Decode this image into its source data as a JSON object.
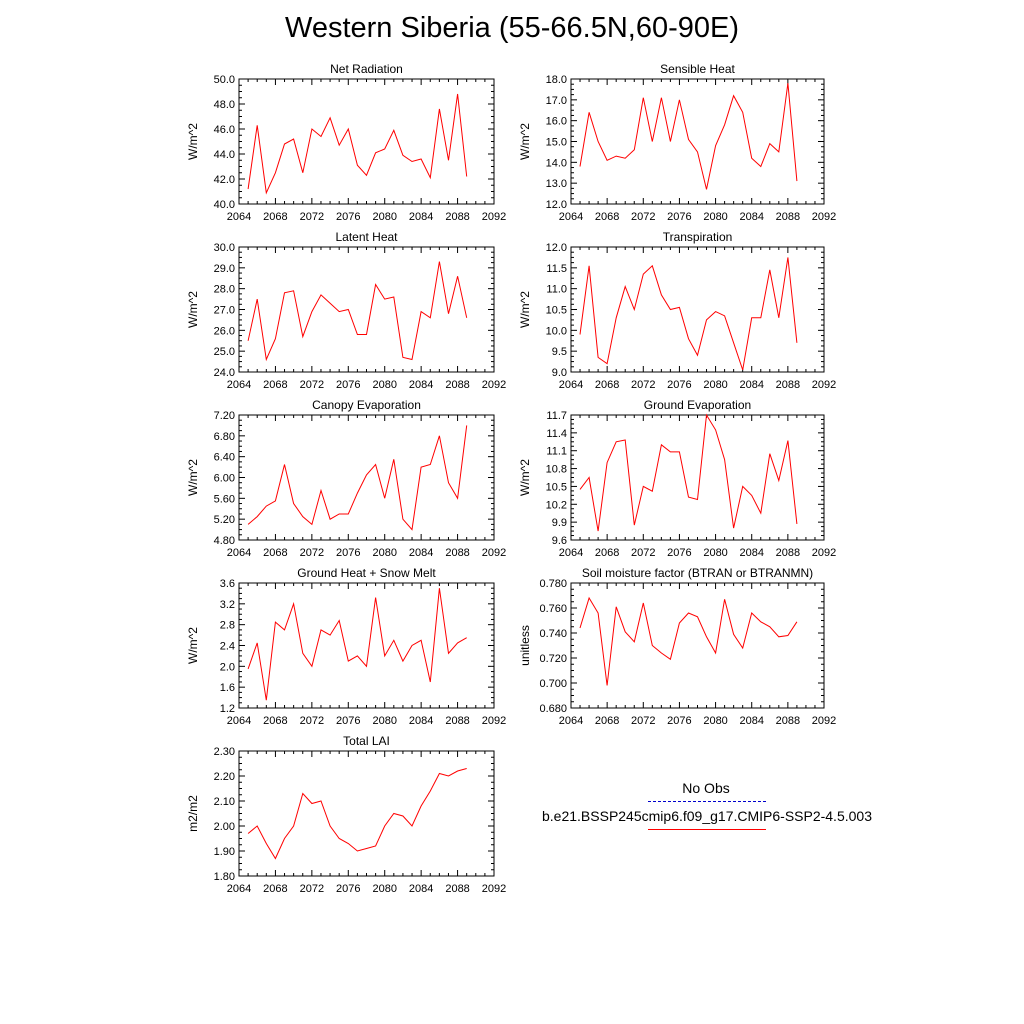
{
  "title": "Western Siberia (55-66.5N,60-90E)",
  "colors": {
    "series": "#ff0000",
    "obs": "#0000cc",
    "axis": "#000000"
  },
  "legend": {
    "obs_label": "No Obs",
    "case_label": "b.e21.BSSP245cmip6.f09_g17.CMIP6-SSP2-4.5.003"
  },
  "chart_data": [
    {
      "type": "line",
      "title": "Net Radiation",
      "ylabel": "W/m^2",
      "xlim": [
        2064,
        2092
      ],
      "ylim": [
        40.0,
        50.0
      ],
      "xticks": [
        "2064",
        "2068",
        "2072",
        "2076",
        "2080",
        "2084",
        "2088",
        "2092"
      ],
      "yticks": [
        "40.0",
        "42.0",
        "44.0",
        "46.0",
        "48.0",
        "50.0"
      ],
      "series": [
        {
          "x": [
            2065,
            2066,
            2067,
            2068,
            2069,
            2070,
            2071,
            2072,
            2073,
            2074,
            2075,
            2076,
            2077,
            2078,
            2079,
            2080,
            2081,
            2082,
            2083,
            2084,
            2085,
            2086,
            2087,
            2088,
            2089
          ],
          "values": [
            41.2,
            46.3,
            40.9,
            42.5,
            44.8,
            45.2,
            42.5,
            46.0,
            45.4,
            46.9,
            44.7,
            46.0,
            43.1,
            42.3,
            44.1,
            44.4,
            45.9,
            43.9,
            43.4,
            43.6,
            42.1,
            47.6,
            43.5,
            48.8,
            42.2
          ]
        }
      ]
    },
    {
      "type": "line",
      "title": "Sensible Heat",
      "ylabel": "W/m^2",
      "xlim": [
        2064,
        2092
      ],
      "ylim": [
        12.0,
        18.0
      ],
      "xticks": [
        "2064",
        "2068",
        "2072",
        "2076",
        "2080",
        "2084",
        "2088",
        "2092"
      ],
      "yticks": [
        "12.0",
        "13.0",
        "14.0",
        "15.0",
        "16.0",
        "17.0",
        "18.0"
      ],
      "series": [
        {
          "x": [
            2065,
            2066,
            2067,
            2068,
            2069,
            2070,
            2071,
            2072,
            2073,
            2074,
            2075,
            2076,
            2077,
            2078,
            2079,
            2080,
            2081,
            2082,
            2083,
            2084,
            2085,
            2086,
            2087,
            2088,
            2089
          ],
          "values": [
            13.8,
            16.4,
            15.0,
            14.1,
            14.3,
            14.2,
            14.6,
            17.1,
            15.0,
            17.1,
            15.0,
            17.0,
            15.1,
            14.5,
            12.7,
            14.8,
            15.8,
            17.2,
            16.4,
            14.2,
            13.8,
            14.9,
            14.5,
            17.8,
            13.1
          ]
        }
      ]
    },
    {
      "type": "line",
      "title": "Latent Heat",
      "ylabel": "W/m^2",
      "xlim": [
        2064,
        2092
      ],
      "ylim": [
        24.0,
        30.0
      ],
      "xticks": [
        "2064",
        "2068",
        "2072",
        "2076",
        "2080",
        "2084",
        "2088",
        "2092"
      ],
      "yticks": [
        "24.0",
        "25.0",
        "26.0",
        "27.0",
        "28.0",
        "29.0",
        "30.0"
      ],
      "series": [
        {
          "x": [
            2065,
            2066,
            2067,
            2068,
            2069,
            2070,
            2071,
            2072,
            2073,
            2074,
            2075,
            2076,
            2077,
            2078,
            2079,
            2080,
            2081,
            2082,
            2083,
            2084,
            2085,
            2086,
            2087,
            2088,
            2089
          ],
          "values": [
            25.5,
            27.5,
            24.6,
            25.6,
            27.8,
            27.9,
            25.7,
            26.9,
            27.7,
            27.3,
            26.9,
            27.0,
            25.8,
            25.8,
            28.2,
            27.5,
            27.6,
            24.7,
            24.6,
            26.9,
            26.6,
            29.3,
            26.8,
            28.6,
            26.6
          ]
        }
      ]
    },
    {
      "type": "line",
      "title": "Transpiration",
      "ylabel": "W/m^2",
      "xlim": [
        2064,
        2092
      ],
      "ylim": [
        9.0,
        12.0
      ],
      "xticks": [
        "2064",
        "2068",
        "2072",
        "2076",
        "2080",
        "2084",
        "2088",
        "2092"
      ],
      "yticks": [
        "9.0",
        "9.5",
        "10.0",
        "10.5",
        "11.0",
        "11.5",
        "12.0"
      ],
      "series": [
        {
          "x": [
            2065,
            2066,
            2067,
            2068,
            2069,
            2070,
            2071,
            2072,
            2073,
            2074,
            2075,
            2076,
            2077,
            2078,
            2079,
            2080,
            2081,
            2082,
            2083,
            2084,
            2085,
            2086,
            2087,
            2088,
            2089
          ],
          "values": [
            9.9,
            11.55,
            9.35,
            9.2,
            10.3,
            11.05,
            10.5,
            11.35,
            11.55,
            10.85,
            10.5,
            10.55,
            9.8,
            9.4,
            10.25,
            10.45,
            10.35,
            9.7,
            9.05,
            10.3,
            10.3,
            11.45,
            10.3,
            11.75,
            9.7
          ]
        }
      ]
    },
    {
      "type": "line",
      "title": "Canopy Evaporation",
      "ylabel": "W/m^2",
      "xlim": [
        2064,
        2092
      ],
      "ylim": [
        4.8,
        7.2
      ],
      "xticks": [
        "2064",
        "2068",
        "2072",
        "2076",
        "2080",
        "2084",
        "2088",
        "2092"
      ],
      "yticks": [
        "4.80",
        "5.20",
        "5.60",
        "6.00",
        "6.40",
        "6.80",
        "7.20"
      ],
      "series": [
        {
          "x": [
            2065,
            2066,
            2067,
            2068,
            2069,
            2070,
            2071,
            2072,
            2073,
            2074,
            2075,
            2076,
            2077,
            2078,
            2079,
            2080,
            2081,
            2082,
            2083,
            2084,
            2085,
            2086,
            2087,
            2088,
            2089
          ],
          "values": [
            5.1,
            5.25,
            5.45,
            5.55,
            6.25,
            5.5,
            5.25,
            5.1,
            5.75,
            5.2,
            5.3,
            5.3,
            5.7,
            6.05,
            6.25,
            5.6,
            6.35,
            5.2,
            5.0,
            6.2,
            6.25,
            6.8,
            5.9,
            5.6,
            7.0
          ]
        }
      ]
    },
    {
      "type": "line",
      "title": "Ground Evaporation",
      "ylabel": "W/m^2",
      "xlim": [
        2064,
        2092
      ],
      "ylim": [
        9.6,
        11.7
      ],
      "xticks": [
        "2064",
        "2068",
        "2072",
        "2076",
        "2080",
        "2084",
        "2088",
        "2092"
      ],
      "yticks": [
        "9.6",
        "9.9",
        "10.2",
        "10.5",
        "10.8",
        "11.1",
        "11.4",
        "11.7"
      ],
      "series": [
        {
          "x": [
            2065,
            2066,
            2067,
            2068,
            2069,
            2070,
            2071,
            2072,
            2073,
            2074,
            2075,
            2076,
            2077,
            2078,
            2079,
            2080,
            2081,
            2082,
            2083,
            2084,
            2085,
            2086,
            2087,
            2088,
            2089
          ],
          "values": [
            10.45,
            10.65,
            9.75,
            10.9,
            11.25,
            11.28,
            9.85,
            10.5,
            10.42,
            11.2,
            11.08,
            11.08,
            10.32,
            10.28,
            11.7,
            11.45,
            10.95,
            9.8,
            10.5,
            10.35,
            10.05,
            11.05,
            10.6,
            11.27,
            9.87
          ]
        }
      ]
    },
    {
      "type": "line",
      "title": "Ground Heat + Snow Melt",
      "ylabel": "W/m^2",
      "xlim": [
        2064,
        2092
      ],
      "ylim": [
        1.2,
        3.6
      ],
      "xticks": [
        "2064",
        "2068",
        "2072",
        "2076",
        "2080",
        "2084",
        "2088",
        "2092"
      ],
      "yticks": [
        "1.2",
        "1.6",
        "2.0",
        "2.4",
        "2.8",
        "3.2",
        "3.6"
      ],
      "series": [
        {
          "x": [
            2065,
            2066,
            2067,
            2068,
            2069,
            2070,
            2071,
            2072,
            2073,
            2074,
            2075,
            2076,
            2077,
            2078,
            2079,
            2080,
            2081,
            2082,
            2083,
            2084,
            2085,
            2086,
            2087,
            2088,
            2089
          ],
          "values": [
            1.95,
            2.45,
            1.35,
            2.85,
            2.7,
            3.2,
            2.25,
            2.0,
            2.7,
            2.6,
            2.88,
            2.1,
            2.2,
            2.0,
            3.32,
            2.2,
            2.5,
            2.1,
            2.4,
            2.5,
            1.7,
            3.5,
            2.25,
            2.45,
            2.55
          ]
        }
      ]
    },
    {
      "type": "line",
      "title": "Soil moisture factor (BTRAN or BTRANMN)",
      "ylabel": "unitless",
      "xlim": [
        2064,
        2092
      ],
      "ylim": [
        0.68,
        0.78
      ],
      "xticks": [
        "2064",
        "2068",
        "2072",
        "2076",
        "2080",
        "2084",
        "2088",
        "2092"
      ],
      "yticks": [
        "0.680",
        "0.700",
        "0.720",
        "0.740",
        "0.760",
        "0.780"
      ],
      "series": [
        {
          "x": [
            2065,
            2066,
            2067,
            2068,
            2069,
            2070,
            2071,
            2072,
            2073,
            2074,
            2075,
            2076,
            2077,
            2078,
            2079,
            2080,
            2081,
            2082,
            2083,
            2084,
            2085,
            2086,
            2087,
            2088,
            2089
          ],
          "values": [
            0.744,
            0.768,
            0.756,
            0.698,
            0.761,
            0.741,
            0.733,
            0.764,
            0.73,
            0.724,
            0.719,
            0.748,
            0.756,
            0.753,
            0.737,
            0.724,
            0.767,
            0.739,
            0.728,
            0.756,
            0.749,
            0.745,
            0.737,
            0.738,
            0.749
          ]
        }
      ]
    },
    {
      "type": "line",
      "title": "Total LAI",
      "ylabel": "m2/m2",
      "xlim": [
        2064,
        2092
      ],
      "ylim": [
        1.8,
        2.3
      ],
      "xticks": [
        "2064",
        "2068",
        "2072",
        "2076",
        "2080",
        "2084",
        "2088",
        "2092"
      ],
      "yticks": [
        "1.80",
        "1.90",
        "2.00",
        "2.10",
        "2.20",
        "2.30"
      ],
      "series": [
        {
          "x": [
            2065,
            2066,
            2067,
            2068,
            2069,
            2070,
            2071,
            2072,
            2073,
            2074,
            2075,
            2076,
            2077,
            2078,
            2079,
            2080,
            2081,
            2082,
            2083,
            2084,
            2085,
            2086,
            2087,
            2088,
            2089
          ],
          "values": [
            1.97,
            2.0,
            1.93,
            1.87,
            1.95,
            2.0,
            2.13,
            2.09,
            2.1,
            2.0,
            1.95,
            1.93,
            1.9,
            1.91,
            1.92,
            2.0,
            2.05,
            2.04,
            2.0,
            2.08,
            2.14,
            2.21,
            2.2,
            2.22,
            2.23
          ]
        }
      ]
    }
  ]
}
